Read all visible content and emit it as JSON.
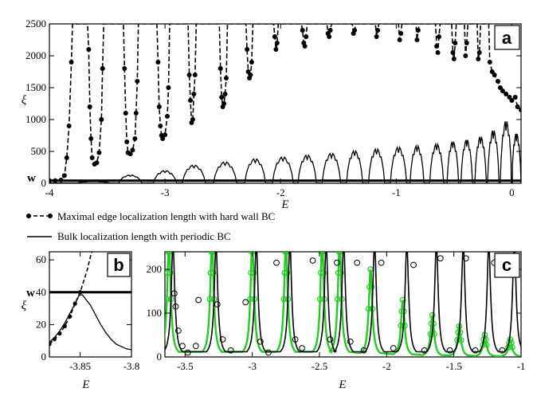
{
  "legend": {
    "items": [
      {
        "label": "Maximal edge localization length with hard wall BC",
        "style": "dashed-dot"
      },
      {
        "label": "Bulk localization length with periodic BC",
        "style": "solid"
      }
    ]
  },
  "chart_data": [
    {
      "panel": "a",
      "type": "line",
      "xlabel": "E",
      "ylabel": "ξ",
      "xlim": [
        -4.0,
        0.08
      ],
      "ylim": [
        0,
        2500
      ],
      "xticks": [
        "-4",
        "-3",
        "-2",
        "-1",
        "0"
      ],
      "xtick_values": [
        -4,
        -3,
        -2,
        -1,
        0
      ],
      "yticks": [
        "0",
        "500",
        "1000",
        "1500",
        "2000",
        "2500"
      ],
      "ytick_values": [
        0,
        500,
        1000,
        1500,
        2000,
        2500
      ],
      "hline": {
        "label": "w",
        "value": 40
      },
      "series": [
        {
          "name": "Maximal edge localization length with hard wall BC",
          "style": "dashed-dots",
          "points": [
            [
              -4.0,
              40
            ],
            [
              -3.95,
              40
            ],
            [
              -3.9,
              50
            ],
            [
              -3.87,
              120
            ],
            [
              -3.85,
              400
            ],
            [
              -3.83,
              900
            ],
            [
              -3.81,
              1900
            ],
            [
              -3.8,
              2500
            ],
            [
              -3.67,
              2500
            ],
            [
              -3.66,
              2100
            ],
            [
              -3.65,
              1200
            ],
            [
              -3.64,
              700
            ],
            [
              -3.63,
              400
            ],
            [
              -3.61,
              300
            ],
            [
              -3.59,
              320
            ],
            [
              -3.57,
              480
            ],
            [
              -3.55,
              1000
            ],
            [
              -3.54,
              1800
            ],
            [
              -3.53,
              2500
            ],
            [
              -3.36,
              2500
            ],
            [
              -3.35,
              1800
            ],
            [
              -3.34,
              1100
            ],
            [
              -3.33,
              650
            ],
            [
              -3.32,
              480
            ],
            [
              -3.3,
              460
            ],
            [
              -3.28,
              520
            ],
            [
              -3.26,
              700
            ],
            [
              -3.25,
              1100
            ],
            [
              -3.24,
              1600
            ],
            [
              -3.23,
              2500
            ],
            [
              -3.07,
              2500
            ],
            [
              -3.06,
              1900
            ],
            [
              -3.05,
              1200
            ],
            [
              -3.04,
              900
            ],
            [
              -3.03,
              750
            ],
            [
              -3.02,
              700
            ],
            [
              -3.0,
              760
            ],
            [
              -2.98,
              1050
            ],
            [
              -2.97,
              1500
            ],
            [
              -2.96,
              2500
            ],
            [
              -2.8,
              2500
            ],
            [
              -2.79,
              1700
            ],
            [
              -2.78,
              1300
            ],
            [
              -2.77,
              950
            ],
            [
              -2.76,
              1000
            ],
            [
              -2.75,
              1400
            ],
            [
              -2.74,
              1700
            ],
            [
              -2.73,
              2500
            ],
            [
              -2.53,
              2500
            ],
            [
              -2.52,
              1800
            ],
            [
              -2.51,
              1350
            ],
            [
              -2.5,
              1200
            ],
            [
              -2.49,
              1250
            ],
            [
              -2.48,
              1400
            ],
            [
              -2.47,
              1650
            ],
            [
              -2.46,
              2500
            ],
            [
              -2.3,
              2500
            ],
            [
              -2.29,
              2100
            ],
            [
              -2.28,
              1750
            ],
            [
              -2.27,
              1650
            ],
            [
              -2.26,
              1700
            ],
            [
              -2.25,
              1900
            ],
            [
              -2.24,
              2500
            ],
            [
              -2.06,
              2500
            ],
            [
              -2.05,
              2300
            ],
            [
              -2.04,
              2100
            ],
            [
              -2.03,
              2200
            ],
            [
              -2.02,
              2500
            ],
            [
              -1.82,
              2500
            ],
            [
              -1.81,
              2400
            ],
            [
              -1.8,
              2200
            ],
            [
              -1.79,
              2150
            ],
            [
              -1.78,
              2300
            ],
            [
              -1.77,
              2500
            ],
            [
              -1.6,
              2500
            ],
            [
              -1.59,
              2350
            ],
            [
              -1.58,
              2300
            ],
            [
              -1.57,
              2400
            ],
            [
              -1.56,
              2500
            ],
            [
              -1.38,
              2500
            ],
            [
              -1.37,
              2350
            ],
            [
              -1.36,
              2400
            ],
            [
              -1.35,
              2500
            ],
            [
              -1.18,
              2500
            ],
            [
              -1.17,
              2300
            ],
            [
              -1.16,
              2400
            ],
            [
              -1.15,
              2500
            ],
            [
              -0.98,
              2500
            ],
            [
              -0.97,
              2250
            ],
            [
              -0.96,
              2350
            ],
            [
              -0.95,
              2500
            ],
            [
              -0.83,
              2500
            ],
            [
              -0.82,
              2250
            ],
            [
              -0.81,
              2400
            ],
            [
              -0.8,
              2500
            ],
            [
              -0.66,
              2500
            ],
            [
              -0.65,
              2150
            ],
            [
              -0.64,
              2050
            ],
            [
              -0.63,
              2300
            ],
            [
              -0.62,
              2500
            ],
            [
              -0.52,
              2500
            ],
            [
              -0.51,
              2050
            ],
            [
              -0.5,
              1950
            ],
            [
              -0.49,
              2200
            ],
            [
              -0.48,
              2500
            ],
            [
              -0.41,
              2500
            ],
            [
              -0.4,
              2000
            ],
            [
              -0.39,
              2200
            ],
            [
              -0.38,
              2500
            ],
            [
              -0.3,
              2500
            ],
            [
              -0.29,
              1950
            ],
            [
              -0.28,
              2050
            ],
            [
              -0.27,
              2500
            ],
            [
              -0.2,
              2500
            ],
            [
              -0.19,
              1900
            ],
            [
              -0.17,
              1750
            ],
            [
              -0.15,
              1700
            ],
            [
              -0.12,
              1600
            ],
            [
              -0.1,
              1500
            ],
            [
              -0.08,
              1450
            ],
            [
              -0.05,
              1400
            ],
            [
              -0.02,
              1350
            ],
            [
              0.0,
              1300
            ],
            [
              0.03,
              1350
            ],
            [
              0.05,
              1200
            ],
            [
              0.08,
              1150
            ]
          ]
        },
        {
          "name": "Bulk localization length with periodic BC",
          "style": "solid",
          "bumps": [
            {
              "center": -3.62,
              "halfwidth": 0.14,
              "height": 25
            },
            {
              "center": -3.3,
              "halfwidth": 0.1,
              "height": 130
            },
            {
              "center": -3.0,
              "halfwidth": 0.1,
              "height": 200
            },
            {
              "center": -2.75,
              "halfwidth": 0.1,
              "height": 290
            },
            {
              "center": -2.48,
              "halfwidth": 0.1,
              "height": 340
            },
            {
              "center": -2.22,
              "halfwidth": 0.09,
              "height": 390
            },
            {
              "center": -1.98,
              "halfwidth": 0.09,
              "height": 420
            },
            {
              "center": -1.77,
              "halfwidth": 0.08,
              "height": 450
            },
            {
              "center": -1.56,
              "halfwidth": 0.08,
              "height": 480
            },
            {
              "center": -1.36,
              "halfwidth": 0.07,
              "height": 520
            },
            {
              "center": -1.17,
              "halfwidth": 0.07,
              "height": 550
            },
            {
              "center": -0.98,
              "halfwidth": 0.07,
              "height": 580
            },
            {
              "center": -0.82,
              "halfwidth": 0.06,
              "height": 600
            },
            {
              "center": -0.65,
              "halfwidth": 0.06,
              "height": 630
            },
            {
              "center": -0.51,
              "halfwidth": 0.05,
              "height": 670
            },
            {
              "center": -0.39,
              "halfwidth": 0.05,
              "height": 700
            },
            {
              "center": -0.27,
              "halfwidth": 0.05,
              "height": 750
            },
            {
              "center": -0.16,
              "halfwidth": 0.05,
              "height": 850
            },
            {
              "center": -0.05,
              "halfwidth": 0.05,
              "height": 1000
            },
            {
              "center": 0.04,
              "halfwidth": 0.04,
              "height": 800
            }
          ]
        }
      ]
    },
    {
      "panel": "b",
      "type": "line",
      "xlabel": "E",
      "ylabel": "ξ",
      "xlim": [
        -3.88,
        -3.8
      ],
      "ylim": [
        0,
        65
      ],
      "xticks": [
        "-3.85",
        "-3.8"
      ],
      "xtick_values": [
        -3.85,
        -3.8
      ],
      "yticks": [
        "0",
        "20",
        "40",
        "60"
      ],
      "ytick_values": [
        0,
        20,
        40,
        60
      ],
      "hline": {
        "label": "w",
        "value": 40
      },
      "series": [
        {
          "name": "Maximal edge localization length with hard wall BC",
          "style": "dashed-dots",
          "points": [
            [
              -3.88,
              8
            ],
            [
              -3.875,
              11
            ],
            [
              -3.87,
              14.5
            ],
            [
              -3.865,
              19
            ],
            [
              -3.86,
              25
            ],
            [
              -3.855,
              33
            ],
            [
              -3.85,
              40
            ],
            [
              -3.847,
              46
            ],
            [
              -3.843,
              54
            ],
            [
              -3.84,
              62
            ],
            [
              -3.838,
              66
            ]
          ]
        },
        {
          "name": "Bulk localization length with periodic BC",
          "style": "solid",
          "points": [
            [
              -3.88,
              9
            ],
            [
              -3.875,
              12
            ],
            [
              -3.87,
              16
            ],
            [
              -3.865,
              21
            ],
            [
              -3.86,
              27
            ],
            [
              -3.855,
              33
            ],
            [
              -3.851,
              38
            ],
            [
              -3.848,
              38.5
            ],
            [
              -3.845,
              36
            ],
            [
              -3.84,
              32
            ],
            [
              -3.835,
              26
            ],
            [
              -3.83,
              20
            ],
            [
              -3.825,
              15
            ],
            [
              -3.82,
              11
            ],
            [
              -3.815,
              8
            ],
            [
              -3.81,
              6.5
            ],
            [
              -3.805,
              5
            ],
            [
              -3.8,
              4.5
            ]
          ]
        }
      ]
    },
    {
      "panel": "c",
      "type": "line",
      "xlabel": "E",
      "ylabel": "",
      "xlim": [
        -3.65,
        -1.0
      ],
      "ylim": [
        0,
        240
      ],
      "xticks": [
        "-3.5",
        "-3",
        "-2.5",
        "-2",
        "-1.5",
        "-1"
      ],
      "xtick_values": [
        -3.5,
        -3.0,
        -2.5,
        -2.0,
        -1.5,
        -1.0
      ],
      "yticks": [
        "0",
        "100",
        "200"
      ],
      "ytick_values": [
        0,
        100,
        200
      ],
      "peaks": [
        {
          "center": -3.62,
          "green_height": 260,
          "black_height": 260
        },
        {
          "center": -3.3,
          "green_height": 260,
          "black_height": 260
        },
        {
          "center": -3.0,
          "green_height": 260,
          "black_height": 260
        },
        {
          "center": -2.75,
          "green_height": 260,
          "black_height": 260
        },
        {
          "center": -2.48,
          "green_height": 260,
          "black_height": 260
        },
        {
          "center": -2.35,
          "green_height": 260,
          "black_height": 260
        },
        {
          "center": -2.12,
          "green_height": 200,
          "black_height": 260
        },
        {
          "center": -1.88,
          "green_height": 130,
          "black_height": 260
        },
        {
          "center": -1.66,
          "green_height": 95,
          "black_height": 260
        },
        {
          "center": -1.46,
          "green_height": 70,
          "black_height": 260
        },
        {
          "center": -1.27,
          "green_height": 50,
          "black_height": 260
        },
        {
          "center": -1.08,
          "green_height": 40,
          "black_height": 260
        }
      ],
      "circle_points": [
        [
          -3.58,
          145
        ],
        [
          -3.57,
          115
        ],
        [
          -3.55,
          60
        ],
        [
          -3.52,
          25
        ],
        [
          -3.48,
          10
        ],
        [
          -3.42,
          25
        ],
        [
          -3.4,
          130
        ],
        [
          -3.26,
          120
        ],
        [
          -3.22,
          40
        ],
        [
          -3.16,
          15
        ],
        [
          -3.05,
          125
        ],
        [
          -2.94,
          35
        ],
        [
          -2.88,
          10
        ],
        [
          -2.82,
          215
        ],
        [
          -2.68,
          40
        ],
        [
          -2.63,
          20
        ],
        [
          -2.55,
          220
        ],
        [
          -2.42,
          40
        ],
        [
          -2.37,
          215
        ],
        [
          -2.27,
          35
        ],
        [
          -2.22,
          215
        ],
        [
          -2.17,
          15
        ],
        [
          -2.04,
          215
        ],
        [
          -1.95,
          20
        ],
        [
          -1.8,
          210
        ],
        [
          -1.72,
          15
        ],
        [
          -1.6,
          225
        ],
        [
          -1.53,
          15
        ],
        [
          -1.41,
          225
        ],
        [
          -1.34,
          15
        ],
        [
          -1.2,
          215
        ],
        [
          -1.14,
          15
        ]
      ]
    }
  ],
  "panel_labels": {
    "a": "a",
    "b": "b",
    "c": "c"
  },
  "colors": {
    "green": "#22cc22",
    "black": "#000000"
  }
}
